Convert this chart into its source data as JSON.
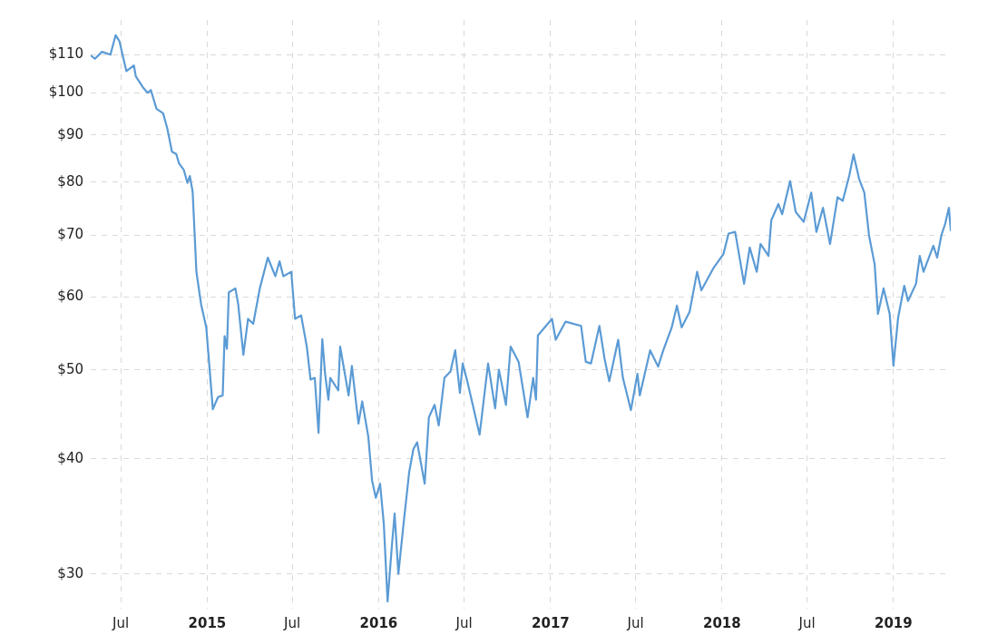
{
  "chart_data": {
    "type": "line",
    "log": "y",
    "grid": true,
    "legend": false,
    "marker": "none",
    "line_style": "solid",
    "xlim": [
      "2014-04-28",
      "2019-05-03"
    ],
    "ylim": [
      27.5,
      120
    ],
    "xticks": [
      {
        "value": "2014-07-01",
        "label": "Jul"
      },
      {
        "value": "2015-01-01",
        "label": "2015"
      },
      {
        "value": "2015-07-01",
        "label": "Jul"
      },
      {
        "value": "2016-01-01",
        "label": "2016"
      },
      {
        "value": "2016-07-01",
        "label": "Jul"
      },
      {
        "value": "2017-01-01",
        "label": "2017"
      },
      {
        "value": "2017-07-01",
        "label": "Jul"
      },
      {
        "value": "2018-01-01",
        "label": "2018"
      },
      {
        "value": "2018-07-01",
        "label": "Jul"
      },
      {
        "value": "2019-01-01",
        "label": "2019"
      }
    ],
    "yticks": [
      {
        "value": 30,
        "label": "$30"
      },
      {
        "value": 40,
        "label": "$40"
      },
      {
        "value": 50,
        "label": "$50"
      },
      {
        "value": 60,
        "label": "$60"
      },
      {
        "value": 70,
        "label": "$70"
      },
      {
        "value": 80,
        "label": "$80"
      },
      {
        "value": 90,
        "label": "$90"
      },
      {
        "value": 100,
        "label": "$100"
      },
      {
        "value": 110,
        "label": "$110"
      }
    ],
    "series": [
      {
        "color": "#5b9bd5",
        "x": [
          "2014-04-29",
          "2014-05-07",
          "2014-05-22",
          "2014-06-09",
          "2014-06-20",
          "2014-06-28",
          "2014-07-10",
          "2014-07-13",
          "2014-07-29",
          "2014-08-02",
          "2014-08-17",
          "2014-08-27",
          "2014-09-03",
          "2014-09-15",
          "2014-09-29",
          "2014-10-08",
          "2014-10-18",
          "2014-10-27",
          "2014-11-02",
          "2014-11-12",
          "2014-11-20",
          "2014-11-25",
          "2014-12-01",
          "2014-12-09",
          "2014-12-19",
          "2014-12-30",
          "2015-01-13",
          "2015-01-24",
          "2015-02-03",
          "2015-02-07",
          "2015-02-12",
          "2015-02-16",
          "2015-03-02",
          "2015-03-08",
          "2015-03-19",
          "2015-03-29",
          "2015-04-09",
          "2015-04-23",
          "2015-05-10",
          "2015-05-26",
          "2015-06-04",
          "2015-06-12",
          "2015-06-29",
          "2015-07-07",
          "2015-07-20",
          "2015-08-01",
          "2015-08-09",
          "2015-08-18",
          "2015-08-26",
          "2015-09-03",
          "2015-09-09",
          "2015-09-16",
          "2015-09-20",
          "2015-10-07",
          "2015-10-11",
          "2015-10-29",
          "2015-11-05",
          "2015-11-19",
          "2015-11-27",
          "2015-12-10",
          "2015-12-18",
          "2015-12-26",
          "2016-01-04",
          "2016-01-12",
          "2016-01-20",
          "2016-01-29",
          "2016-02-04",
          "2016-02-12",
          "2016-02-23",
          "2016-03-06",
          "2016-03-15",
          "2016-03-23",
          "2016-04-08",
          "2016-04-17",
          "2016-04-29",
          "2016-05-08",
          "2016-05-20",
          "2016-06-02",
          "2016-06-12",
          "2016-06-22",
          "2016-06-28",
          "2016-07-09",
          "2016-08-03",
          "2016-08-21",
          "2016-09-05",
          "2016-09-13",
          "2016-09-28",
          "2016-10-08",
          "2016-10-25",
          "2016-11-13",
          "2016-11-25",
          "2016-12-01",
          "2016-12-05",
          "2017-01-04",
          "2017-01-12",
          "2017-02-02",
          "2017-03-07",
          "2017-03-17",
          "2017-03-28",
          "2017-04-15",
          "2017-04-26",
          "2017-05-06",
          "2017-05-25",
          "2017-06-04",
          "2017-06-21",
          "2017-07-05",
          "2017-07-10",
          "2017-08-01",
          "2017-08-18",
          "2017-08-29",
          "2017-09-16",
          "2017-09-27",
          "2017-10-07",
          "2017-10-24",
          "2017-11-09",
          "2017-11-18",
          "2017-12-13",
          "2018-01-04",
          "2018-01-15",
          "2018-01-29",
          "2018-02-17",
          "2018-03-01",
          "2018-03-16",
          "2018-03-24",
          "2018-04-10",
          "2018-04-16",
          "2018-05-01",
          "2018-05-09",
          "2018-05-26",
          "2018-06-07",
          "2018-06-24",
          "2018-07-10",
          "2018-07-21",
          "2018-08-04",
          "2018-08-19",
          "2018-09-04",
          "2018-09-15",
          "2018-09-29",
          "2018-10-08",
          "2018-10-20",
          "2018-10-31",
          "2018-11-10",
          "2018-11-22",
          "2018-11-29",
          "2018-12-11",
          "2018-12-24",
          "2019-01-01",
          "2019-01-11",
          "2019-01-24",
          "2019-02-01",
          "2019-02-18",
          "2019-02-26",
          "2019-03-06",
          "2019-03-27",
          "2019-04-04",
          "2019-04-13",
          "2019-04-21",
          "2019-04-29",
          "2019-05-03"
        ],
        "values": [
          109.7,
          108.9,
          110.8,
          110,
          115.5,
          113.8,
          107.1,
          105.6,
          107.1,
          104.2,
          101.4,
          100,
          100.7,
          96.1,
          95,
          91.5,
          86.3,
          85.8,
          83.8,
          82.5,
          79.8,
          81.2,
          78.1,
          63.9,
          58.9,
          55.6,
          45.3,
          46.7,
          46.9,
          54.4,
          52.7,
          60.7,
          61.3,
          58.9,
          51.9,
          56.8,
          56.1,
          61.3,
          66.2,
          63.2,
          65.6,
          63.2,
          63.9,
          56.8,
          57.3,
          53,
          48.8,
          49,
          42.7,
          54,
          49.5,
          46.4,
          49,
          47.5,
          53,
          46.9,
          50.5,
          43.7,
          46.2,
          42.3,
          37.9,
          36.3,
          37.6,
          34,
          28,
          32.1,
          34.9,
          30,
          34,
          38.7,
          41,
          41.7,
          37.6,
          44.4,
          45.8,
          43.5,
          49,
          49.8,
          52.5,
          47.2,
          50.8,
          48.3,
          42.5,
          50.8,
          45.4,
          50,
          45.8,
          53,
          51,
          44.4,
          49,
          46.4,
          54.5,
          56.8,
          53.9,
          56.4,
          55.8,
          51,
          50.8,
          55.8,
          51.4,
          48.6,
          53.9,
          49,
          45.2,
          49.5,
          46.9,
          52.5,
          50.4,
          52.5,
          55.6,
          58.7,
          55.6,
          57.8,
          63.9,
          61,
          64.4,
          66.8,
          70.3,
          70.6,
          62,
          67.9,
          63.9,
          68.5,
          66.5,
          72.7,
          75.7,
          73.8,
          80.2,
          74.2,
          72.4,
          77.9,
          70.6,
          75,
          68.5,
          77,
          76.3,
          81.3,
          85.7,
          80.6,
          77.9,
          70,
          65.1,
          57.5,
          61.3,
          57.5,
          50.5,
          57,
          61.7,
          59.4,
          62,
          66.5,
          63.9,
          68.2,
          66.2,
          70,
          72,
          75,
          70.9
        ]
      }
    ]
  }
}
